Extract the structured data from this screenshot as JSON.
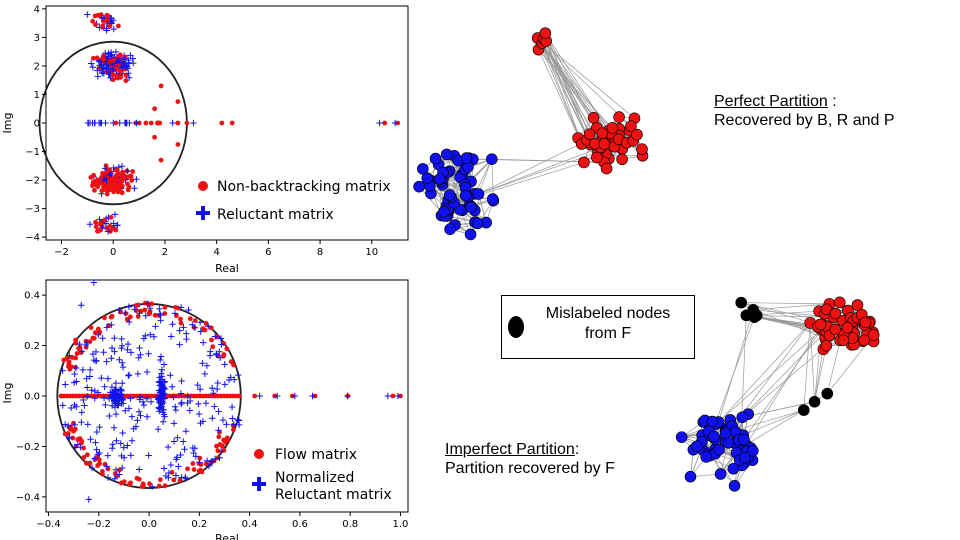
{
  "chart_data": [
    {
      "type": "scatter",
      "title": "",
      "xlabel": "Real",
      "ylabel": "Img",
      "xlim": [
        -2.6,
        11.4
      ],
      "ylim": [
        -4.1,
        4.1
      ],
      "xticks": [
        -2,
        0,
        2,
        4,
        6,
        8,
        10
      ],
      "yticks": [
        -4,
        -3,
        -2,
        -1,
        0,
        1,
        2,
        3,
        4
      ],
      "grid": false,
      "legend_position": "bottom-right",
      "unit_circle_radius": 2.85,
      "series": [
        {
          "name": "Non-backtracking matrix",
          "marker": "circle",
          "color": "#ee1111",
          "outliers": [
            [
              2.5,
              0
            ],
            [
              2.85,
              0
            ],
            [
              4.6,
              0
            ],
            [
              4.2,
              0
            ],
            [
              10.5,
              0
            ],
            [
              11.0,
              0
            ],
            [
              1.6,
              0.5
            ],
            [
              1.6,
              -0.5
            ],
            [
              2.5,
              0.75
            ],
            [
              2.5,
              -0.75
            ],
            [
              1.85,
              1.3
            ],
            [
              1.85,
              -1.3
            ],
            [
              -0.7,
              3.75
            ],
            [
              -0.2,
              3.75
            ],
            [
              0.2,
              3.4
            ],
            [
              -0.5,
              -3.75
            ],
            [
              0.1,
              -3.75
            ],
            [
              0.1,
              0
            ]
          ]
        },
        {
          "name": "Reluctant matrix",
          "marker": "plus",
          "color": "#1111ee",
          "outliers": [
            [
              -1.0,
              3.8
            ],
            [
              0.0,
              3.6
            ],
            [
              -0.2,
              -3.8
            ],
            [
              -0.9,
              -3.55
            ],
            [
              2.3,
              0
            ],
            [
              3.1,
              0
            ],
            [
              0.9,
              0
            ],
            [
              10.3,
              0
            ],
            [
              10.9,
              0
            ],
            [
              -0.8,
              0
            ],
            [
              -0.3,
              0
            ]
          ]
        }
      ]
    },
    {
      "type": "scatter",
      "title": "",
      "xlabel": "Real",
      "ylabel": "Img",
      "xlim": [
        -0.41,
        1.03
      ],
      "ylim": [
        -0.46,
        0.46
      ],
      "xticks": [
        -0.4,
        -0.2,
        0.0,
        0.2,
        0.4,
        0.6,
        0.8,
        1.0
      ],
      "yticks": [
        -0.4,
        -0.2,
        0.0,
        0.2,
        0.4
      ],
      "grid": false,
      "legend_position": "bottom-right",
      "unit_circle_radius": 0.365,
      "series": [
        {
          "name": "Flow matrix",
          "marker": "circle",
          "color": "#ee1111",
          "outliers": [
            [
              0.42,
              0
            ],
            [
              0.5,
              0
            ],
            [
              0.57,
              0
            ],
            [
              0.66,
              0
            ],
            [
              0.79,
              0
            ],
            [
              0.97,
              0
            ],
            [
              1.0,
              0
            ]
          ]
        },
        {
          "name": "Normalized\nReluctant matrix",
          "marker": "plus",
          "color": "#1111ee",
          "outliers": [
            [
              0.44,
              0
            ],
            [
              0.51,
              0
            ],
            [
              0.58,
              0
            ],
            [
              0.65,
              0
            ],
            [
              0.79,
              0
            ],
            [
              0.95,
              0
            ],
            [
              0.99,
              0
            ],
            [
              -0.22,
              0.45
            ],
            [
              -0.27,
              0.36
            ],
            [
              -0.24,
              -0.41
            ]
          ]
        }
      ]
    }
  ],
  "legend1": {
    "items": [
      "Non-backtracking matrix",
      "Reluctant matrix"
    ]
  },
  "legend2": {
    "items": [
      "Flow matrix",
      "Normalized",
      "Reluctant matrix"
    ]
  },
  "perfect_partition": {
    "title": "Perfect Partition",
    "colon": " :",
    "subtitle": "Recovered by B, R and P"
  },
  "imperfect_partition": {
    "title": "Imperfect Partition",
    "colon": ":",
    "subtitle": "Partition recovered by F"
  },
  "mislabel_box": {
    "line1": "Mislabeled nodes",
    "line2": "from F"
  },
  "colors": {
    "red": "#ee1111",
    "blue": "#1111ee",
    "black": "#000000",
    "edge": "#9a9a9a"
  }
}
